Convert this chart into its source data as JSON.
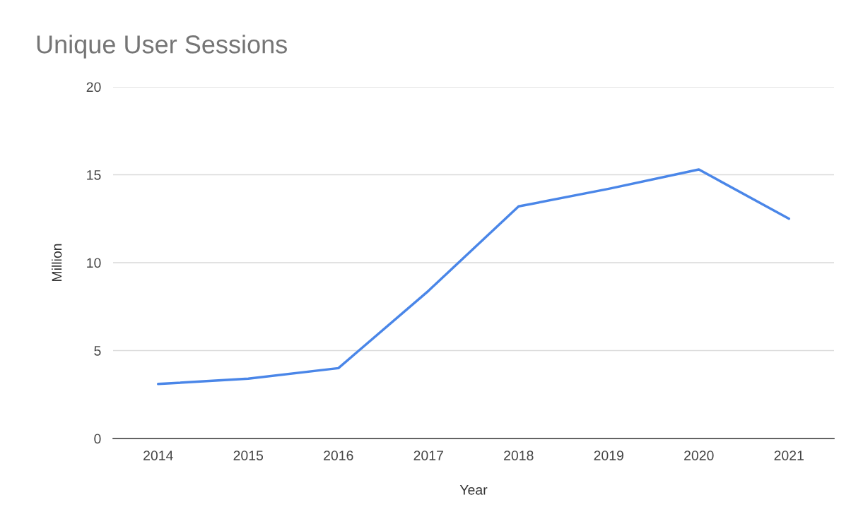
{
  "chart_data": {
    "type": "line",
    "title": "Unique User Sessions",
    "xlabel": "Year",
    "ylabel": "Million",
    "categories": [
      "2014",
      "2015",
      "2016",
      "2017",
      "2018",
      "2019",
      "2020",
      "2021"
    ],
    "series": [
      {
        "color": "#4a86e8",
        "values": [
          3.1,
          3.4,
          4.0,
          8.4,
          13.2,
          14.2,
          15.3,
          12.5
        ]
      }
    ],
    "ylim": [
      0,
      20
    ],
    "yticks": [
      0,
      5,
      10,
      15,
      20
    ],
    "grid": "y",
    "marker": "none",
    "line_style": "solid"
  }
}
